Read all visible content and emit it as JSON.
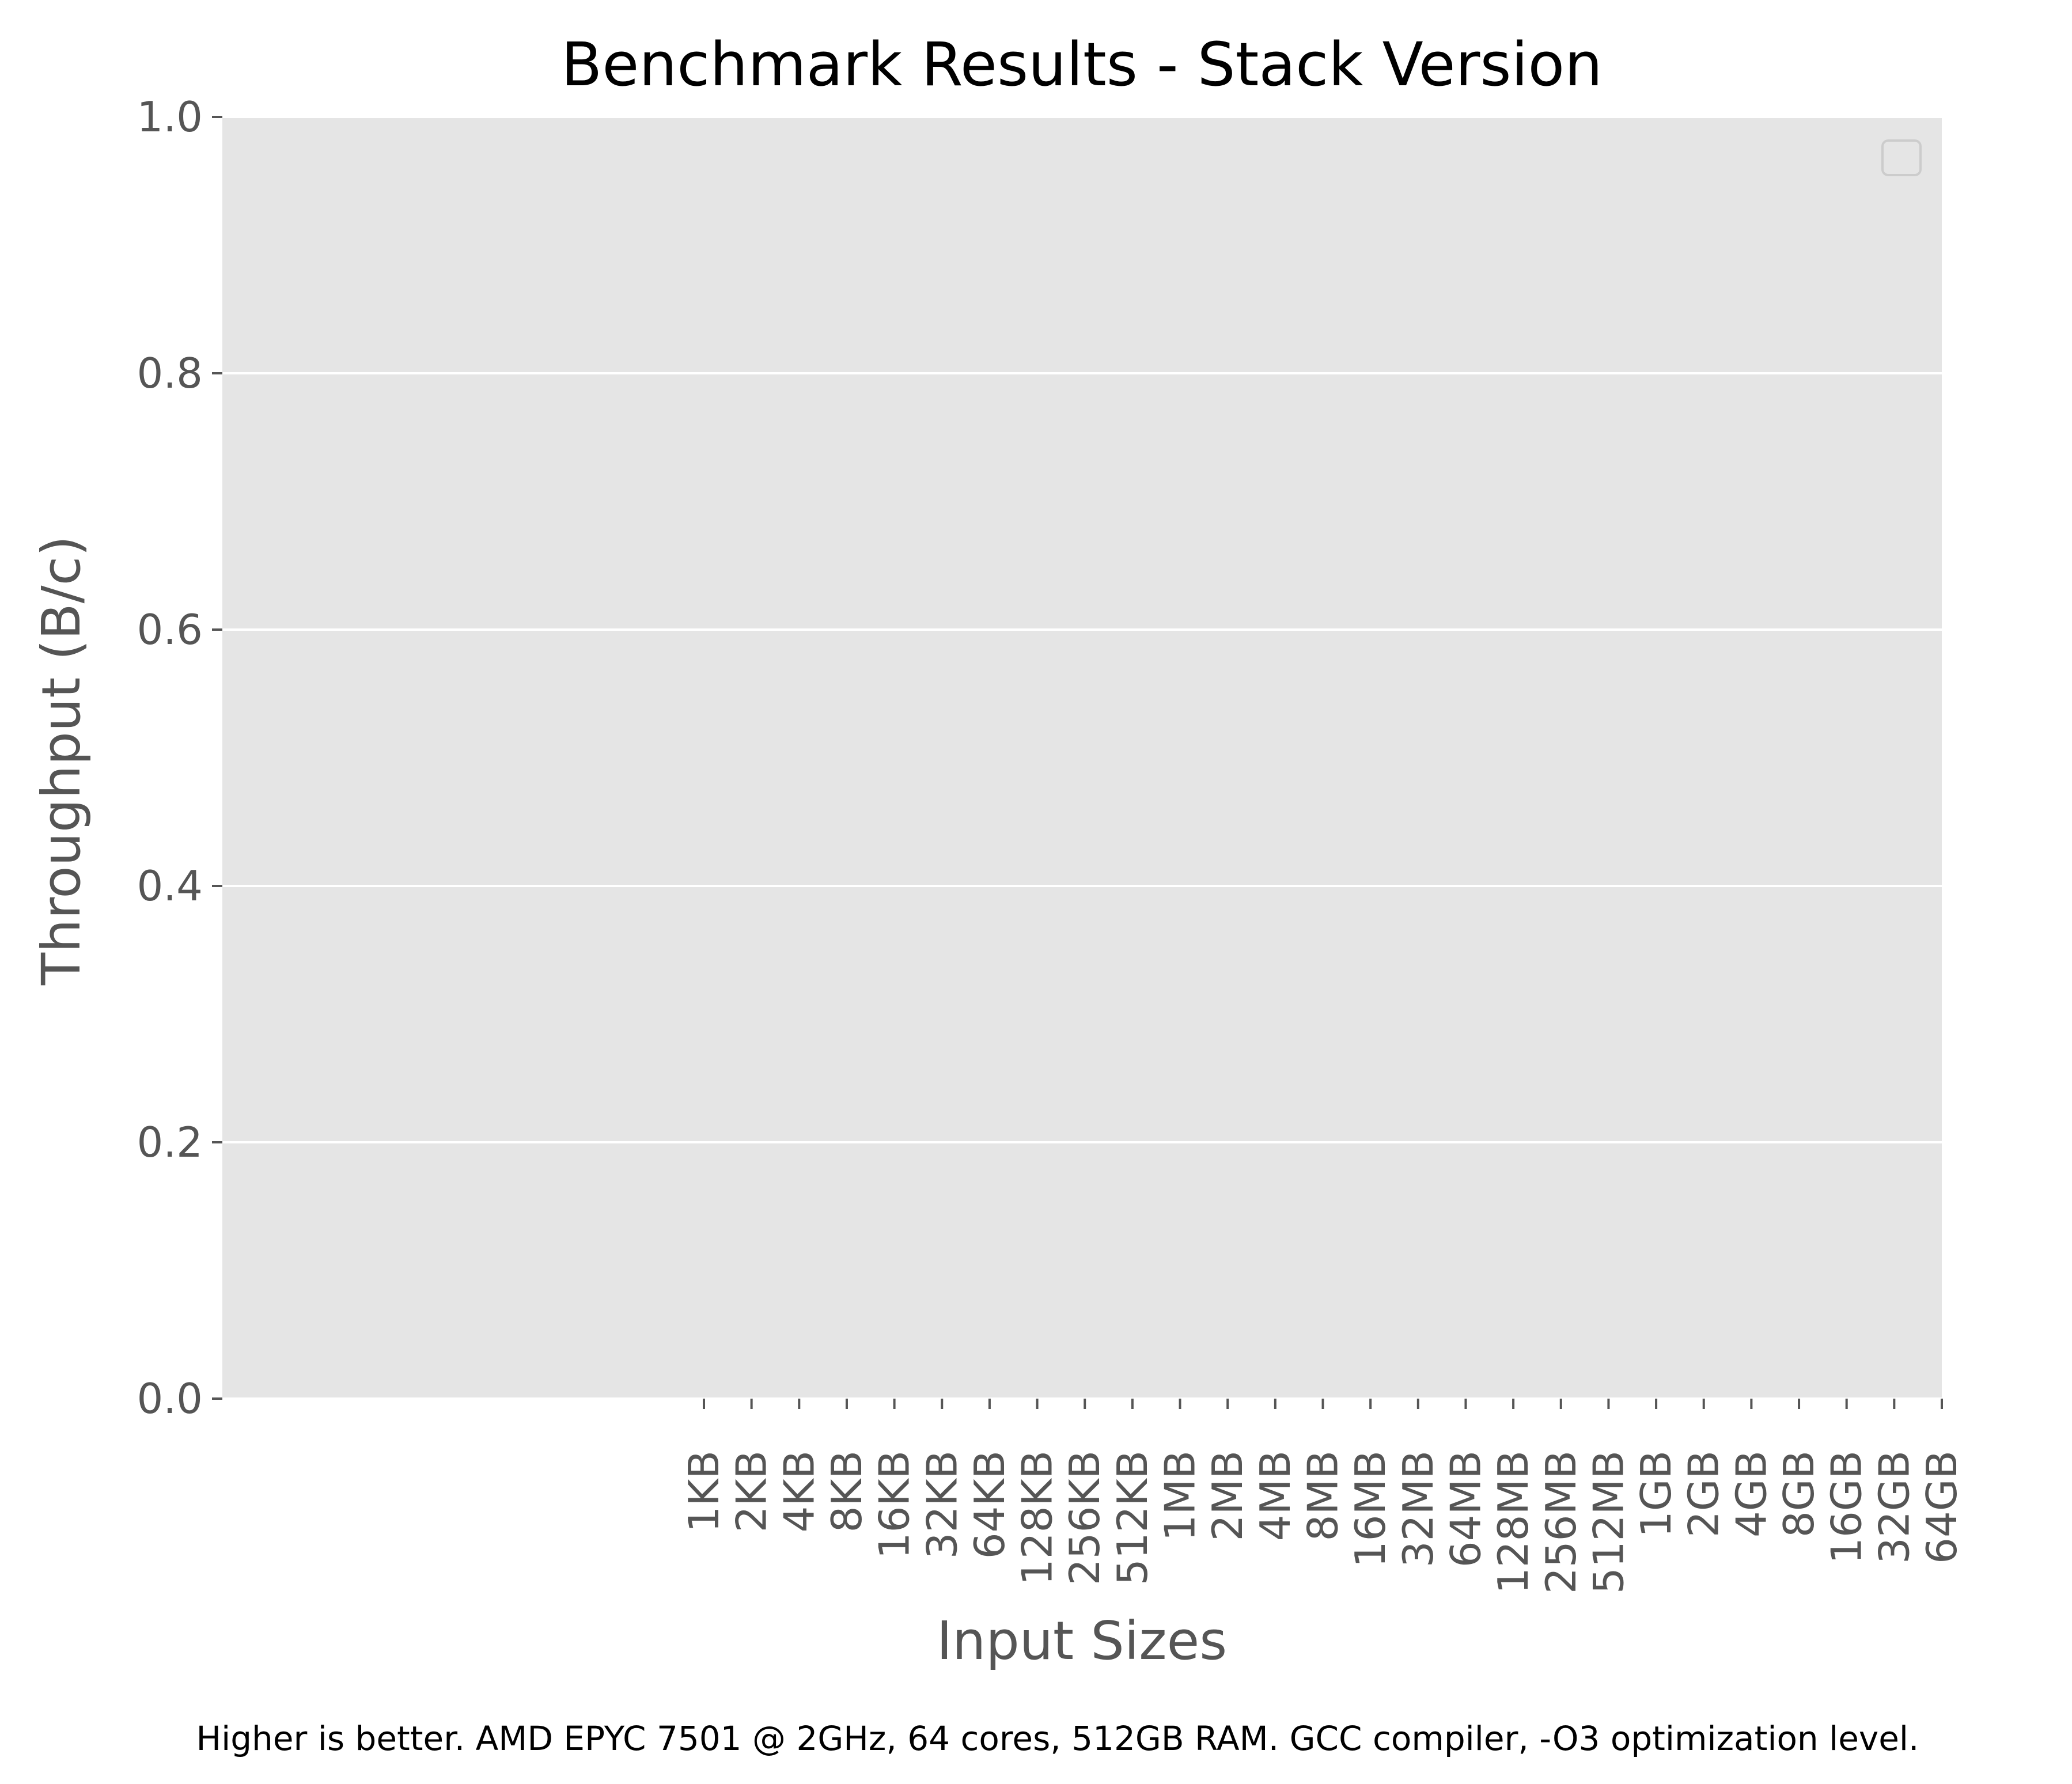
{
  "chart_data": {
    "type": "bar",
    "title": "Benchmark Results - Stack Version",
    "xlabel": "Input Sizes",
    "ylabel": "Throughput (B/c)",
    "categories": [
      "1KB",
      "2KB",
      "4KB",
      "8KB",
      "16KB",
      "32KB",
      "64KB",
      "128KB",
      "256KB",
      "512KB",
      "1MB",
      "2MB",
      "4MB",
      "8MB",
      "16MB",
      "32MB",
      "64MB",
      "128MB",
      "256MB",
      "512MB",
      "1GB",
      "2GB",
      "4GB",
      "8GB",
      "16GB",
      "32GB",
      "64GB"
    ],
    "series": [],
    "ylim": [
      0,
      1.0
    ],
    "yticks": [
      "0.0",
      "0.2",
      "0.4",
      "0.6",
      "0.8",
      "1.0"
    ],
    "grid": "horizontal",
    "legend": "top-right (empty)",
    "footnote": "Higher is better. AMD EPYC 7501 @ 2GHz, 64 cores, 512GB RAM. GCC compiler, -O3 optimization level.",
    "colors": {
      "plot_background": "#e5e5e5",
      "grid": "#ffffff",
      "text": "#555555",
      "tick": "#555555"
    }
  }
}
